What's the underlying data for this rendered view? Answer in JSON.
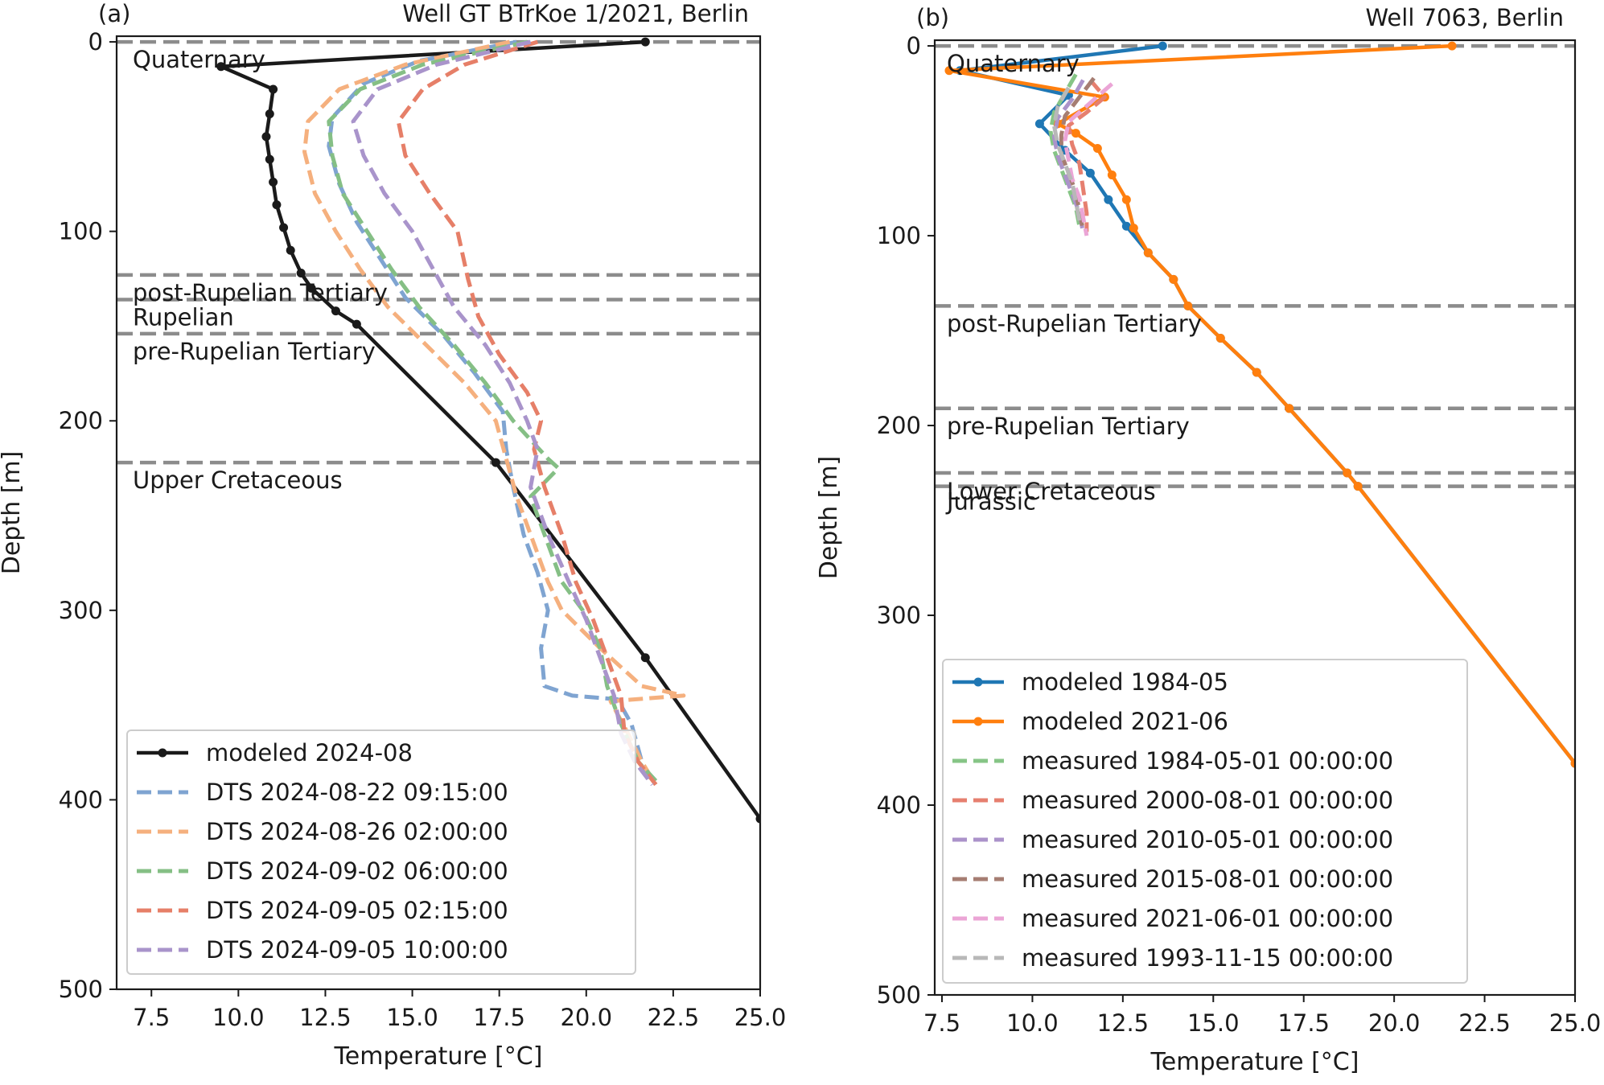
{
  "chart_data": [
    {
      "type": "line",
      "panel_tag": "(a)",
      "title": "Well GT BTrKoe 1/2021, Berlin",
      "xlabel": "Temperature [°C]",
      "ylabel": "Depth [m]",
      "xlim": [
        6.5,
        25.0
      ],
      "ylim": [
        500,
        -3
      ],
      "y_inverted": true,
      "xticks": [
        "7.5",
        "10.0",
        "12.5",
        "15.0",
        "17.5",
        "20.0",
        "22.5",
        "25.0"
      ],
      "yticks": [
        "0",
        "100",
        "200",
        "300",
        "400",
        "500"
      ],
      "legend_position": "lower-left",
      "formations": [
        {
          "name": "Quaternary",
          "top": 0
        },
        {
          "name": "post-Rupelian Tertiary",
          "top": 123
        },
        {
          "name": "Rupelian",
          "top": 136
        },
        {
          "name": "pre-Rupelian Tertiary",
          "top": 154
        },
        {
          "name": "Upper Cretaceous",
          "top": 222
        }
      ],
      "formation_label_offsets": [
        8,
        8,
        8,
        8,
        8
      ],
      "series": [
        {
          "name": "modeled 2024-08",
          "color": "#1a1a1a",
          "style": "solid",
          "markers": true,
          "points": [
            [
              21.7,
              0
            ],
            [
              9.5,
              13
            ],
            [
              11.0,
              25
            ],
            [
              10.9,
              38
            ],
            [
              10.8,
              50
            ],
            [
              10.9,
              62
            ],
            [
              11.0,
              74
            ],
            [
              11.1,
              86
            ],
            [
              11.3,
              98
            ],
            [
              11.5,
              110
            ],
            [
              11.8,
              122
            ],
            [
              12.1,
              130
            ],
            [
              12.8,
              142
            ],
            [
              13.4,
              149
            ],
            [
              17.4,
              222
            ],
            [
              21.7,
              325
            ],
            [
              25.0,
              410
            ]
          ]
        },
        {
          "name": "DTS 2024-08-22 09:15:00",
          "color": "#7fa4d1",
          "style": "dashed",
          "markers": false,
          "points": [
            [
              18.0,
              0
            ],
            [
              15.2,
              10
            ],
            [
              13.6,
              22
            ],
            [
              12.7,
              40
            ],
            [
              12.6,
              55
            ],
            [
              12.9,
              75
            ],
            [
              13.4,
              95
            ],
            [
              14.1,
              115
            ],
            [
              14.8,
              135
            ],
            [
              15.9,
              155
            ],
            [
              16.8,
              175
            ],
            [
              17.6,
              195
            ],
            [
              17.7,
              215
            ],
            [
              17.9,
              235
            ],
            [
              18.2,
              260
            ],
            [
              18.6,
              280
            ],
            [
              18.9,
              300
            ],
            [
              18.7,
              320
            ],
            [
              18.8,
              340
            ],
            [
              19.6,
              345
            ],
            [
              20.9,
              347
            ],
            [
              21.3,
              360
            ],
            [
              21.6,
              380
            ],
            [
              21.9,
              392
            ]
          ]
        },
        {
          "name": "DTS 2024-08-26 02:00:00",
          "color": "#f5b07e",
          "style": "dashed",
          "markers": false,
          "points": [
            [
              17.8,
              0
            ],
            [
              14.8,
              12
            ],
            [
              12.9,
              25
            ],
            [
              12.0,
              42
            ],
            [
              11.9,
              58
            ],
            [
              12.2,
              80
            ],
            [
              12.8,
              100
            ],
            [
              13.5,
              120
            ],
            [
              14.3,
              140
            ],
            [
              15.4,
              160
            ],
            [
              16.5,
              180
            ],
            [
              17.4,
              200
            ],
            [
              17.7,
              220
            ],
            [
              18.0,
              240
            ],
            [
              18.5,
              265
            ],
            [
              18.9,
              285
            ],
            [
              19.3,
              300
            ],
            [
              20.4,
              320
            ],
            [
              21.6,
              340
            ],
            [
              22.8,
              345
            ],
            [
              20.7,
              348
            ],
            [
              21.2,
              365
            ],
            [
              21.6,
              380
            ],
            [
              22.0,
              392
            ]
          ]
        },
        {
          "name": "DTS 2024-09-02 06:00:00",
          "color": "#85bf85",
          "style": "dashed",
          "markers": false,
          "points": [
            [
              18.3,
              0
            ],
            [
              15.3,
              12
            ],
            [
              13.5,
              25
            ],
            [
              12.6,
              42
            ],
            [
              12.7,
              60
            ],
            [
              13.0,
              80
            ],
            [
              13.7,
              100
            ],
            [
              14.4,
              120
            ],
            [
              15.2,
              140
            ],
            [
              16.2,
              160
            ],
            [
              17.1,
              180
            ],
            [
              17.9,
              200
            ],
            [
              18.9,
              220
            ],
            [
              19.2,
              225
            ],
            [
              18.4,
              240
            ],
            [
              18.9,
              265
            ],
            [
              19.3,
              285
            ],
            [
              19.9,
              300
            ],
            [
              20.4,
              320
            ],
            [
              20.6,
              340
            ],
            [
              21.0,
              360
            ],
            [
              21.5,
              380
            ],
            [
              22.0,
              390
            ]
          ]
        },
        {
          "name": "DTS 2024-09-05 02:15:00",
          "color": "#e67f68",
          "style": "dashed",
          "markers": false,
          "points": [
            [
              18.6,
              0
            ],
            [
              16.5,
              12
            ],
            [
              15.3,
              25
            ],
            [
              14.6,
              42
            ],
            [
              14.8,
              60
            ],
            [
              15.5,
              80
            ],
            [
              16.3,
              100
            ],
            [
              16.6,
              125
            ],
            [
              16.9,
              145
            ],
            [
              17.5,
              165
            ],
            [
              18.3,
              185
            ],
            [
              18.7,
              200
            ],
            [
              18.5,
              215
            ],
            [
              18.8,
              235
            ],
            [
              19.3,
              260
            ],
            [
              19.7,
              285
            ],
            [
              20.2,
              305
            ],
            [
              20.6,
              325
            ],
            [
              21.0,
              345
            ],
            [
              21.1,
              365
            ],
            [
              21.5,
              380
            ],
            [
              22.0,
              392
            ]
          ]
        },
        {
          "name": "DTS 2024-09-05 10:00:00",
          "color": "#a994cb",
          "style": "dashed",
          "markers": false,
          "points": [
            [
              18.4,
              0
            ],
            [
              15.7,
              12
            ],
            [
              14.0,
              25
            ],
            [
              13.3,
              42
            ],
            [
              13.6,
              60
            ],
            [
              14.2,
              80
            ],
            [
              15.0,
              100
            ],
            [
              15.6,
              120
            ],
            [
              16.2,
              140
            ],
            [
              17.1,
              160
            ],
            [
              17.8,
              180
            ],
            [
              18.3,
              200
            ],
            [
              18.6,
              215
            ],
            [
              18.4,
              235
            ],
            [
              18.9,
              260
            ],
            [
              19.5,
              285
            ],
            [
              20.0,
              305
            ],
            [
              20.4,
              325
            ],
            [
              20.8,
              345
            ],
            [
              21.0,
              365
            ],
            [
              21.4,
              380
            ],
            [
              21.9,
              392
            ]
          ]
        }
      ]
    },
    {
      "type": "line",
      "panel_tag": "(b)",
      "title": "Well 7063, Berlin",
      "xlabel": "Temperature [°C]",
      "ylabel": "Depth [m]",
      "xlim": [
        7.3,
        25.0
      ],
      "ylim": [
        500,
        -3
      ],
      "y_inverted": true,
      "xticks": [
        "7.5",
        "10.0",
        "12.5",
        "15.0",
        "17.5",
        "20.0",
        "22.5",
        "25.0"
      ],
      "yticks": [
        "0",
        "100",
        "200",
        "300",
        "400",
        "500"
      ],
      "legend_position": "lower-left",
      "formations": [
        {
          "name": "Quaternary",
          "top": 0
        },
        {
          "name": "post-Rupelian Tertiary",
          "top": 137
        },
        {
          "name": "pre-Rupelian Tertiary",
          "top": 191
        },
        {
          "name": "Lower Cretaceous",
          "top": 225
        },
        {
          "name": "Jurassic",
          "top": 232
        }
      ],
      "formation_label_offsets": [
        8,
        8,
        8,
        9,
        5
      ],
      "series": [
        {
          "name": "modeled 1984-05",
          "color": "#1f77b4",
          "style": "solid",
          "markers": true,
          "points": [
            [
              13.6,
              0
            ],
            [
              8.0,
              13
            ],
            [
              11.0,
              26
            ],
            [
              10.2,
              41
            ],
            [
              10.9,
              55
            ],
            [
              11.6,
              67
            ],
            [
              12.1,
              81
            ],
            [
              12.6,
              95
            ],
            [
              13.2,
              109
            ],
            [
              13.9,
              123
            ],
            [
              14.3,
              137
            ],
            [
              15.2,
              154
            ],
            [
              16.2,
              172
            ],
            [
              17.1,
              191
            ],
            [
              18.7,
              225
            ],
            [
              19.0,
              232
            ],
            [
              25.0,
              378
            ]
          ]
        },
        {
          "name": "modeled 2021-06",
          "color": "#ff7f0e",
          "style": "solid",
          "markers": true,
          "points": [
            [
              21.6,
              0
            ],
            [
              7.7,
              13
            ],
            [
              12.0,
              27
            ],
            [
              10.7,
              41
            ],
            [
              11.2,
              46
            ],
            [
              11.8,
              54
            ],
            [
              12.2,
              68
            ],
            [
              12.6,
              81
            ],
            [
              12.8,
              96
            ],
            [
              13.2,
              109
            ],
            [
              13.9,
              123
            ],
            [
              14.3,
              137
            ],
            [
              15.2,
              154
            ],
            [
              16.2,
              172
            ],
            [
              17.1,
              191
            ],
            [
              18.7,
              225
            ],
            [
              19.0,
              232
            ],
            [
              25.0,
              378
            ]
          ]
        },
        {
          "name": "measured 1984-05-01 00:00:00",
          "color": "#86c586",
          "style": "dashed",
          "markers": false,
          "points": [
            [
              11.2,
              15
            ],
            [
              10.9,
              25
            ],
            [
              10.6,
              35
            ],
            [
              10.5,
              45
            ],
            [
              10.6,
              55
            ],
            [
              10.8,
              65
            ],
            [
              11.0,
              75
            ],
            [
              11.2,
              85
            ],
            [
              11.3,
              95
            ]
          ]
        },
        {
          "name": "measured 2000-08-01 00:00:00",
          "color": "#e67f6f",
          "style": "dashed",
          "markers": false,
          "points": [
            [
              11.6,
              18
            ],
            [
              12.0,
              27
            ],
            [
              11.5,
              35
            ],
            [
              11.0,
              42
            ],
            [
              11.1,
              52
            ],
            [
              11.3,
              62
            ],
            [
              11.4,
              75
            ],
            [
              11.5,
              88
            ],
            [
              11.5,
              98
            ]
          ]
        },
        {
          "name": "measured 2010-05-01 00:00:00",
          "color": "#ab93ca",
          "style": "dashed",
          "markers": false,
          "points": [
            [
              11.4,
              18
            ],
            [
              11.1,
              28
            ],
            [
              10.7,
              38
            ],
            [
              10.6,
              48
            ],
            [
              10.7,
              58
            ],
            [
              10.9,
              68
            ],
            [
              11.1,
              78
            ],
            [
              11.3,
              88
            ],
            [
              11.4,
              98
            ]
          ]
        },
        {
          "name": "measured 2015-08-01 00:00:00",
          "color": "#a67d72",
          "style": "dashed",
          "markers": false,
          "points": [
            [
              11.7,
              17
            ],
            [
              11.3,
              27
            ],
            [
              10.9,
              37
            ],
            [
              10.8,
              47
            ],
            [
              10.8,
              57
            ],
            [
              11.0,
              67
            ],
            [
              11.2,
              77
            ],
            [
              11.3,
              87
            ],
            [
              11.4,
              97
            ]
          ]
        },
        {
          "name": "measured 2021-06-01 00:00:00",
          "color": "#eba5d6",
          "style": "dashed",
          "markers": false,
          "points": [
            [
              12.2,
              20
            ],
            [
              11.6,
              30
            ],
            [
              11.0,
              40
            ],
            [
              10.9,
              50
            ],
            [
              11.0,
              60
            ],
            [
              11.1,
              70
            ],
            [
              11.3,
              80
            ],
            [
              11.4,
              90
            ],
            [
              11.5,
              100
            ]
          ]
        },
        {
          "name": "measured 1993-11-15 00:00:00",
          "color": "#b8b8b8",
          "style": "dashed",
          "markers": false,
          "points": [
            [
              11.0,
              22
            ],
            [
              10.7,
              32
            ],
            [
              10.6,
              42
            ],
            [
              10.7,
              52
            ],
            [
              10.9,
              62
            ],
            [
              11.1,
              72
            ],
            [
              11.2,
              82
            ],
            [
              11.3,
              92
            ]
          ]
        }
      ]
    }
  ]
}
